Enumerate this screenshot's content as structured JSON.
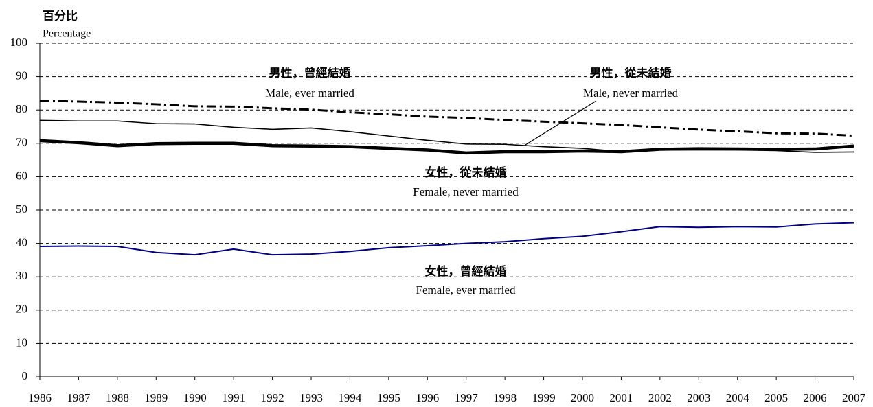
{
  "chart_data": {
    "type": "line",
    "y_label_zh": "百分比",
    "y_label": "Percentage",
    "categories": [
      "1986",
      "1987",
      "1988",
      "1989",
      "1990",
      "1991",
      "1992",
      "1993",
      "1994",
      "1995",
      "1996",
      "1997",
      "1998",
      "1999",
      "2000",
      "2001",
      "2002",
      "2003",
      "2004",
      "2005",
      "2006",
      "2007"
    ],
    "series": [
      {
        "name": "Male, ever married",
        "name_zh": "男性，曾經結婚",
        "color": "#000000",
        "style": "dash-dot",
        "values": [
          82.8,
          82.5,
          82.2,
          81.7,
          81.1,
          81.0,
          80.5,
          80.1,
          79.3,
          78.7,
          78.0,
          77.6,
          77.0,
          76.5,
          76.0,
          75.5,
          74.8,
          74.1,
          73.6,
          73.0,
          72.9,
          72.3
        ]
      },
      {
        "name": "Male, never married",
        "name_zh": "男性，從未結婚",
        "color": "#000000",
        "style": "thin",
        "values": [
          76.9,
          76.7,
          76.7,
          75.9,
          75.8,
          74.8,
          74.2,
          74.6,
          73.5,
          72.2,
          70.9,
          69.8,
          69.7,
          69.0,
          68.5,
          67.5,
          68.0,
          68.0,
          68.0,
          67.8,
          67.3,
          67.4
        ]
      },
      {
        "name": "Female, never married",
        "name_zh": "女性，從未結婚",
        "color": "#000000",
        "style": "thick",
        "values": [
          70.8,
          70.2,
          69.3,
          69.9,
          70.0,
          70.0,
          69.3,
          69.2,
          69.0,
          68.5,
          68.0,
          67.1,
          67.5,
          67.5,
          67.7,
          67.5,
          68.2,
          68.4,
          68.3,
          68.2,
          68.3,
          69.2
        ]
      },
      {
        "name": "Female, ever married",
        "name_zh": "女性，曾經結婚",
        "color": "#000080",
        "style": "medium",
        "values": [
          39.1,
          39.2,
          39.1,
          37.3,
          36.6,
          38.3,
          36.6,
          36.8,
          37.6,
          38.7,
          39.3,
          40.0,
          40.5,
          41.4,
          42.1,
          43.5,
          45.0,
          44.8,
          45.0,
          44.9,
          45.8,
          46.2
        ]
      }
    ],
    "ylim": [
      0,
      100
    ],
    "yticks": [
      0,
      10,
      20,
      30,
      40,
      50,
      60,
      70,
      80,
      90,
      100
    ],
    "grid": true
  }
}
